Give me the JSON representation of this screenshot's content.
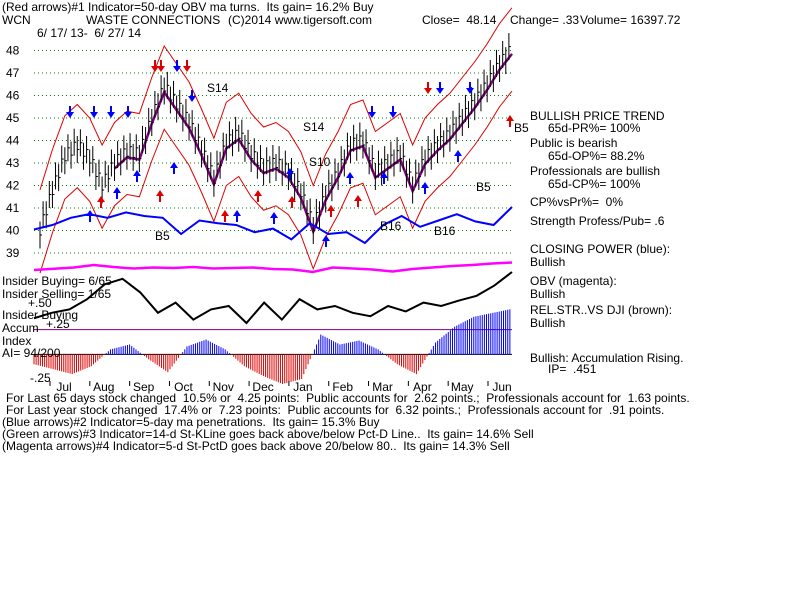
{
  "header": {
    "line1": "(Red arrows)#1 Indicator=50-day OBV ma turns.  Its gain= 16.2% Buy",
    "ticker": "WCN",
    "company": "WASTE CONNECTIONS",
    "copyright": "(C)2014 www.tigersoft.com",
    "close": "Close=  48.14",
    "change": "Change= .33",
    "volume": "Volume= 16397.72",
    "daterange": "6/ 17/ 13-  6/ 27/ 14"
  },
  "right_panel": {
    "b5": "B5",
    "trend_title": "BULLISH PRICE TREND",
    "pr": "65d-PR%= 100%",
    "public": "Public is bearish",
    "op": "65d-OP%= 88.2%",
    "pros": "Professionals are bullish",
    "cp": "65d-CP%= 100%",
    "cpvspr": "CP%vsPr%=  0%",
    "strength": "Strength Profess/Pub= .6",
    "closing_power": "CLOSING POWER (blue):",
    "closing_power_val": "Bullish",
    "obv": "OBV (magenta):",
    "obv_val": "Bullish",
    "relstr": "REL.STR..VS DJI (brown):",
    "relstr_val": "Bullish",
    "accum": "Bullish: Accumulation Rising.",
    "ip": "IP=  .451"
  },
  "left_panel": {
    "insider_buying": "Insider Buying= 6/65",
    "insider_selling": "Insider Selling= 1/65",
    "p50": "+.50",
    "insider_buying2": "Insider Buying",
    "accum": "Accum",
    "p25": "+.25",
    "index": "Index",
    "ai": "AI= 94/200",
    "m25": "-.25"
  },
  "chart_annotations": {
    "s14a": "S14",
    "s14b": "S14",
    "s10": "S10",
    "b5": "B5",
    "b16a": "B16",
    "b16b": "B16",
    "b5b": "B5"
  },
  "footer": {
    "line1": "For Last 65 days stock changed  10.5% or  4.25 points:  Public accounts for  2.62 points.;  Professionals account for  1.63 points.",
    "line2": "For Last year stock changed  17.4% or  7.23 points:  Public accounts for  6.32 points.;  Professionals account for  .91 points.",
    "line3": "(Blue arrows)#2 Indicator=5-day ma penetrations.  Its gain= 15.3% Buy",
    "line4": "(Green arrows)#3 Indicator=14-d St-KLine goes back above/below Pct-D Line..  Its gain= 14.6% Sell",
    "line5": "(Magenta arrows)#4 Indicator=5-d St-PctD goes back above 20/below 80..  Its gain= 14.3% Sell"
  },
  "colors": {
    "price": "#000000",
    "bands": "#dd0000",
    "ma": "#800080",
    "closing_power": "#0000ff",
    "obv": "#ff00ff",
    "accum_pos": "#0000ff",
    "accum_neg": "#dd0000",
    "grid": "#008000"
  },
  "chart_data": {
    "type": "line",
    "title": "WASTE CONNECTIONS",
    "y_ticks": [
      48,
      47,
      46,
      45,
      44,
      43,
      42,
      41,
      40,
      39
    ],
    "ylim": [
      38.6,
      49
    ],
    "x_ticks": [
      "Jul",
      "Aug",
      "Sep",
      "Oct",
      "Nov",
      "Dec",
      "Jan",
      "Feb",
      "Mar",
      "Apr",
      "May",
      "Jun"
    ],
    "price_close": [
      40.0,
      41.8,
      43.3,
      43.8,
      43.2,
      42.0,
      43.0,
      43.5,
      43.4,
      45.0,
      46.4,
      45.6,
      44.8,
      43.6,
      42.3,
      43.9,
      44.3,
      43.4,
      42.8,
      43.0,
      42.6,
      41.7,
      40.2,
      41.6,
      42.6,
      43.8,
      44.0,
      42.6,
      43.0,
      43.4,
      42.0,
      43.2,
      43.8,
      44.3,
      45.0,
      45.7,
      46.5,
      47.4,
      48.1
    ],
    "series": [
      {
        "name": "CLOSING POWER (blue)",
        "values": [
          0.45,
          0.5,
          0.58,
          0.62,
          0.58,
          0.64,
          0.6,
          0.58,
          0.4,
          0.55,
          0.52,
          0.5,
          0.42,
          0.46,
          0.34,
          0.52,
          0.4,
          0.42,
          0.3,
          0.5,
          0.6,
          0.48,
          0.55,
          0.62,
          0.54,
          0.5,
          0.7
        ]
      },
      {
        "name": "OBV (magenta)",
        "values": [
          0.2,
          0.25,
          0.3,
          0.4,
          0.32,
          0.26,
          0.3,
          0.28,
          0.32,
          0.26,
          0.28,
          0.3,
          0.24,
          0.22,
          0.12,
          0.3,
          0.26,
          0.22,
          0.14,
          0.24,
          0.3,
          0.36,
          0.4,
          0.46,
          0.5
        ]
      },
      {
        "name": "REL.STR..VS DJI (brown)",
        "values": [
          0.32,
          0.4,
          0.45,
          0.6,
          0.82,
          0.9,
          0.7,
          0.4,
          0.55,
          0.3,
          0.45,
          0.5,
          0.25,
          0.55,
          0.3,
          0.6,
          0.45,
          0.5,
          0.4,
          0.35,
          0.5,
          0.42,
          0.55,
          0.5,
          0.58,
          0.65,
          0.8,
          1.0
        ]
      }
    ],
    "accumulation_index": [
      -0.1,
      -0.15,
      -0.2,
      -0.12,
      0.05,
      0.1,
      -0.05,
      -0.18,
      0.08,
      0.15,
      0.05,
      -0.12,
      -0.22,
      -0.3,
      -0.25,
      0.2,
      0.1,
      0.14,
      0.05,
      -0.1,
      -0.2,
      0.12,
      0.28,
      0.38,
      0.42,
      0.46
    ],
    "accum_ylim": [
      -0.3,
      0.55
    ]
  }
}
